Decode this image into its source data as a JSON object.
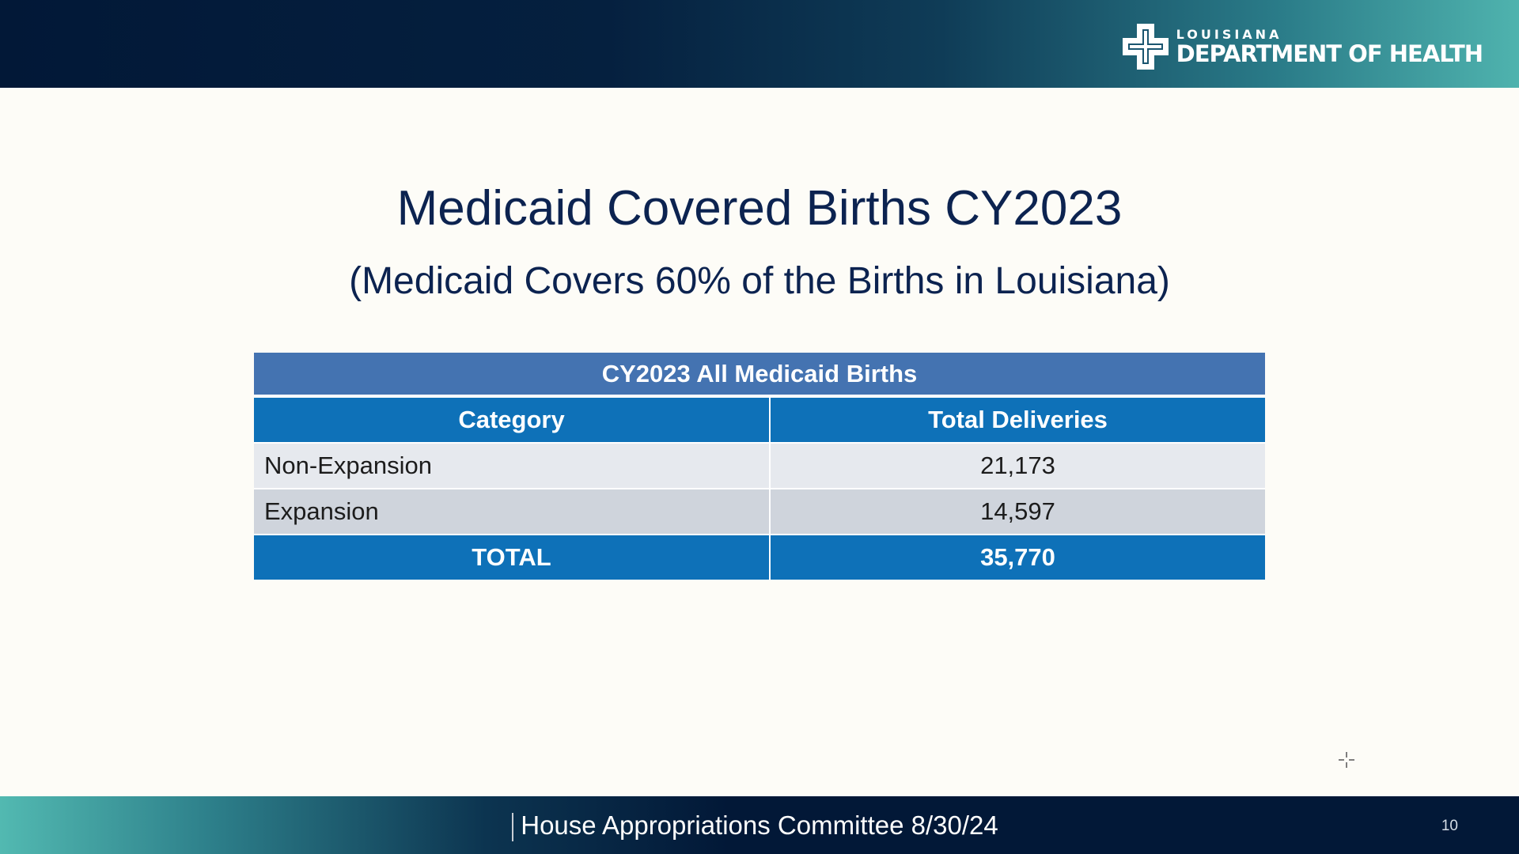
{
  "header": {
    "logo_sub": "LOUISIANA",
    "logo_main": "DEPARTMENT OF HEALTH",
    "logo_icon": "ldh-cross-logo-icon"
  },
  "slide": {
    "title": "Medicaid Covered Births CY2023",
    "subtitle": "(Medicaid Covers 60% of the Births in Louisiana)"
  },
  "table": {
    "caption": "CY2023 All Medicaid Births",
    "columns": [
      "Category",
      "Total Deliveries"
    ],
    "rows": [
      {
        "category": "Non-Expansion",
        "value": "21,173"
      },
      {
        "category": "Expansion",
        "value": "14,597"
      }
    ],
    "total": {
      "category": "TOTAL",
      "value": "35,770"
    }
  },
  "footer": {
    "text": "House Appropriations Committee 8/30/24",
    "page_number": "10"
  },
  "colors": {
    "navy": "#021837",
    "teal": "#4fb3ae",
    "title_text": "#0c2350",
    "caption_blue": "#4473b1",
    "header_blue": "#0e71b8",
    "row_light": "#e6e9ee",
    "row_dark": "#cfd4dc"
  }
}
